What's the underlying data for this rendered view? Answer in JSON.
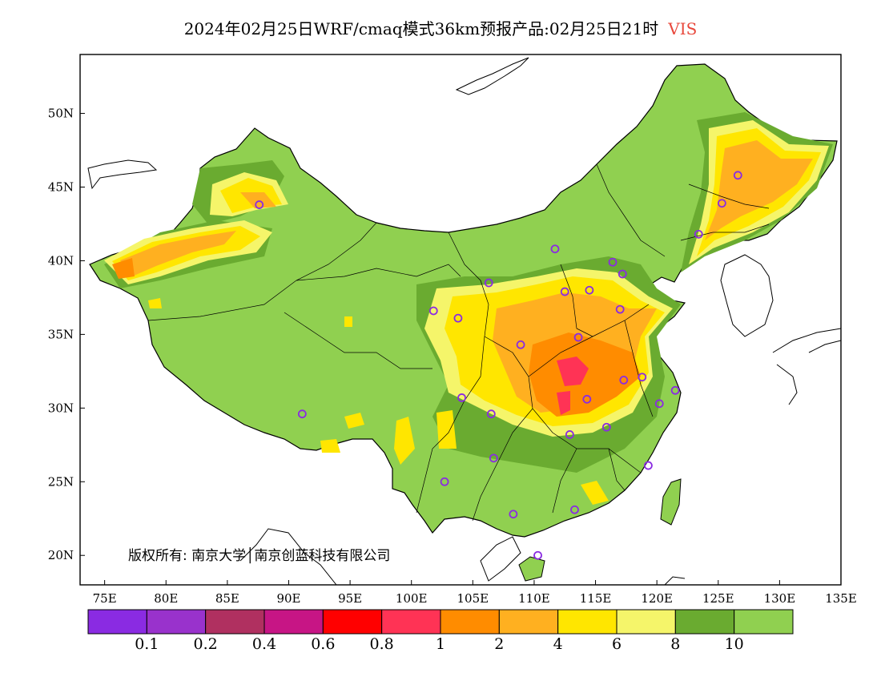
{
  "title": {
    "text": "2024年02月25日WRF/cmaq模式36km预报产品:02月25日21时",
    "variable": "VIS"
  },
  "map": {
    "lon_ticks": [
      "75E",
      "80E",
      "85E",
      "90E",
      "95E",
      "100E",
      "105E",
      "110E",
      "115E",
      "120E",
      "125E",
      "130E",
      "135E"
    ],
    "lat_ticks": [
      "20N",
      "25N",
      "30N",
      "35N",
      "40N",
      "45N",
      "50N"
    ],
    "lon_range": [
      73,
      135
    ],
    "lat_range": [
      18,
      54
    ],
    "copyright": "版权所有: 南京大学│南京创蓝科技有限公司",
    "stations": [
      {
        "lon": 87.6,
        "lat": 43.8
      },
      {
        "lon": 91.1,
        "lat": 29.6
      },
      {
        "lon": 101.8,
        "lat": 36.6
      },
      {
        "lon": 103.8,
        "lat": 36.1
      },
      {
        "lon": 106.3,
        "lat": 38.5
      },
      {
        "lon": 111.7,
        "lat": 40.8
      },
      {
        "lon": 112.5,
        "lat": 37.9
      },
      {
        "lon": 114.5,
        "lat": 38.0
      },
      {
        "lon": 116.4,
        "lat": 39.9
      },
      {
        "lon": 117.2,
        "lat": 39.1
      },
      {
        "lon": 117.0,
        "lat": 36.7
      },
      {
        "lon": 113.6,
        "lat": 34.8
      },
      {
        "lon": 108.9,
        "lat": 34.3
      },
      {
        "lon": 104.1,
        "lat": 30.7
      },
      {
        "lon": 106.5,
        "lat": 29.6
      },
      {
        "lon": 106.7,
        "lat": 26.6
      },
      {
        "lon": 102.7,
        "lat": 25.0
      },
      {
        "lon": 108.3,
        "lat": 22.8
      },
      {
        "lon": 110.3,
        "lat": 20.0
      },
      {
        "lon": 113.3,
        "lat": 23.1
      },
      {
        "lon": 119.3,
        "lat": 26.1
      },
      {
        "lon": 115.9,
        "lat": 28.7
      },
      {
        "lon": 112.9,
        "lat": 28.2
      },
      {
        "lon": 114.3,
        "lat": 30.6
      },
      {
        "lon": 117.3,
        "lat": 31.9
      },
      {
        "lon": 118.8,
        "lat": 32.1
      },
      {
        "lon": 120.2,
        "lat": 30.3
      },
      {
        "lon": 121.5,
        "lat": 31.2
      },
      {
        "lon": 123.4,
        "lat": 41.8
      },
      {
        "lon": 125.3,
        "lat": 43.9
      },
      {
        "lon": 126.6,
        "lat": 45.8
      }
    ]
  },
  "colorbar": {
    "colors": [
      "#8a2be2",
      "#9932cc",
      "#b03060",
      "#c71585",
      "#ff0000",
      "#ff3355",
      "#ff8c00",
      "#ffb020",
      "#ffe600",
      "#f5f56a",
      "#6aab30",
      "#90d050"
    ],
    "labels": [
      "0.1",
      "0.2",
      "0.4",
      "0.6",
      "0.8",
      "1",
      "2",
      "4",
      "6",
      "8",
      "10"
    ]
  },
  "colors": {
    "land_high": "#90d050",
    "land_dark": "#6aab30",
    "station": "#8a2be2",
    "variable_title": "#e8483c"
  }
}
